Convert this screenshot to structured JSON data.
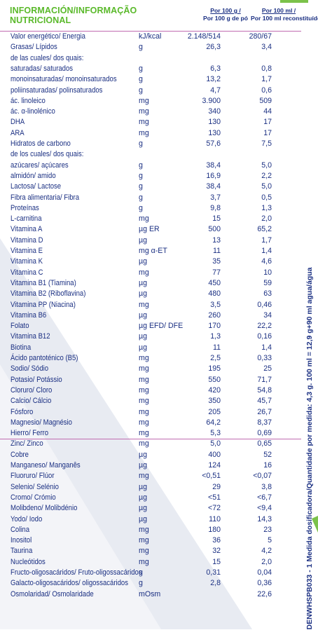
{
  "header": {
    "title_line1": "INFORMACIÓN/INFORMAÇÃO",
    "title_line2": "NUTRICIONAL",
    "col1_line1": "Por 100 g /",
    "col1_line2": "Por 100 g de pó",
    "col2_line1": "Por 100 ml /",
    "col2_line2": "Por 100 ml reconstituído"
  },
  "rows": [
    {
      "name": "Valor energético/ Energia",
      "unit": "kJ/kcal",
      "v1": "2.148/514",
      "v2": "280/67"
    },
    {
      "name": "Grasas/ Lípidos",
      "unit": "g",
      "v1": "26,3",
      "v2": "3,4"
    },
    {
      "name": "de las cuales/ dos quais:",
      "unit": "",
      "v1": "",
      "v2": ""
    },
    {
      "name": "  saturadas/ saturados",
      "unit": "g",
      "v1": "6,3",
      "v2": "0,8"
    },
    {
      "name": "  monoinsaturadas/ monoinsaturados",
      "unit": "g",
      "v1": "13,2",
      "v2": "1,7"
    },
    {
      "name": "  poliinsaturadas/ polinsaturados",
      "unit": "g",
      "v1": "4,7",
      "v2": "0,6"
    },
    {
      "name": "  ác. linoleico",
      "unit": "mg",
      "v1": "3.900",
      "v2": "509"
    },
    {
      "name": "  ác. α-linolénico",
      "unit": "mg",
      "v1": "340",
      "v2": "44"
    },
    {
      "name": "  DHA",
      "unit": "mg",
      "v1": "130",
      "v2": "17"
    },
    {
      "name": "  ARA",
      "unit": "mg",
      "v1": "130",
      "v2": "17"
    },
    {
      "name": "Hidratos de carbono",
      "unit": "g",
      "v1": "57,6",
      "v2": "7,5"
    },
    {
      "name": "de los cuales/ dos quais:",
      "unit": "",
      "v1": "",
      "v2": ""
    },
    {
      "name": "  azúcares/ açúcares",
      "unit": "g",
      "v1": "38,4",
      "v2": "5,0"
    },
    {
      "name": "  almidón/ amido",
      "unit": "g",
      "v1": "16,9",
      "v2": "2,2"
    },
    {
      "name": "Lactosa/ Lactose",
      "unit": "g",
      "v1": "38,4",
      "v2": "5,0"
    },
    {
      "name": "Fibra alimentaria/ Fibra",
      "unit": "g",
      "v1": "3,7",
      "v2": "0,5"
    },
    {
      "name": "Proteínas",
      "unit": "g",
      "v1": "9,8",
      "v2": "1,3"
    },
    {
      "name": "L-carnitina",
      "unit": "mg",
      "v1": "15",
      "v2": "2,0"
    },
    {
      "name": "Vitamina A",
      "unit": "µg ER",
      "v1": "500",
      "v2": "65,2"
    },
    {
      "name": "Vitamina D",
      "unit": "µg",
      "v1": "13",
      "v2": "1,7"
    },
    {
      "name": "Vitamina E",
      "unit": "mg α-ET",
      "v1": "11",
      "v2": "1,4"
    },
    {
      "name": "Vitamina K",
      "unit": "µg",
      "v1": "35",
      "v2": "4,6"
    },
    {
      "name": "Vitamina C",
      "unit": "mg",
      "v1": "77",
      "v2": "10"
    },
    {
      "name": "Vitamina B1 (Tiamina)",
      "unit": "µg",
      "v1": "450",
      "v2": "59"
    },
    {
      "name": "Vitamina B2 (Riboflavina)",
      "unit": "µg",
      "v1": "480",
      "v2": "63"
    },
    {
      "name": "Vitamina PP (Niacina)",
      "unit": "mg",
      "v1": "3,5",
      "v2": "0,46"
    },
    {
      "name": "Vitamina B6",
      "unit": "µg",
      "v1": "260",
      "v2": "34"
    },
    {
      "name": "Folato",
      "unit": "µg EFD/ DFE",
      "v1": "170",
      "v2": "22,2"
    },
    {
      "name": "Vitamina B12",
      "unit": "µg",
      "v1": "1,3",
      "v2": "0,16"
    },
    {
      "name": "Biotina",
      "unit": "µg",
      "v1": "11",
      "v2": "1,4"
    },
    {
      "name": "Ácido pantoténico (B5)",
      "unit": "mg",
      "v1": "2,5",
      "v2": "0,33"
    },
    {
      "name": "Sodio/ Sódio",
      "unit": "mg",
      "v1": "195",
      "v2": "25"
    },
    {
      "name": "Potasio/ Potássio",
      "unit": "mg",
      "v1": "550",
      "v2": "71,7"
    },
    {
      "name": "Cloruro/ Cloro",
      "unit": "mg",
      "v1": "420",
      "v2": "54,8"
    },
    {
      "name": "Calcio/ Cálcio",
      "unit": "mg",
      "v1": "350",
      "v2": "45,7"
    },
    {
      "name": "Fósforo",
      "unit": "mg",
      "v1": "205",
      "v2": "26,7"
    },
    {
      "name": "Magnesio/ Magnésio",
      "unit": "mg",
      "v1": "64,2",
      "v2": "8,37"
    },
    {
      "name": "Hierro/ Ferro",
      "unit": "mg",
      "v1": "5,3",
      "v2": "0,69"
    },
    {
      "name": "Zinc/ Zinco",
      "unit": "mg",
      "v1": "5,0",
      "v2": "0,65"
    },
    {
      "name": "Cobre",
      "unit": "µg",
      "v1": "400",
      "v2": "52"
    },
    {
      "name": "Manganeso/ Manganês",
      "unit": "µg",
      "v1": "124",
      "v2": "16"
    },
    {
      "name": "Fluoruro/ Flúor",
      "unit": "mg",
      "v1": "<0,51",
      "v2": "<0,07"
    },
    {
      "name": "Selenio/ Selénio",
      "unit": "µg",
      "v1": "29",
      "v2": "3,8"
    },
    {
      "name": "Cromo/ Crómio",
      "unit": "µg",
      "v1": "<51",
      "v2": "<6,7"
    },
    {
      "name": "Molibdeno/ Molibdénio",
      "unit": "µg",
      "v1": "<72",
      "v2": "<9,4"
    },
    {
      "name": "Yodo/ Iodo",
      "unit": "µg",
      "v1": "110",
      "v2": "14,3"
    },
    {
      "name": "Colina",
      "unit": "mg",
      "v1": "180",
      "v2": "23"
    },
    {
      "name": "Inositol",
      "unit": "mg",
      "v1": "36",
      "v2": "5"
    },
    {
      "name": "Taurina",
      "unit": "mg",
      "v1": "32",
      "v2": "4,2"
    },
    {
      "name": "Nucleótidos",
      "unit": "mg",
      "v1": "15",
      "v2": "2,0"
    },
    {
      "name": "Fructo-oligosacáridos/ Fruto-oligossacáridos",
      "unit": "g",
      "v1": "0,31",
      "v2": "0,04"
    },
    {
      "name": "Galacto-oligosacáridos/ oligossacáridos",
      "unit": "g",
      "v1": "2,8",
      "v2": "0,36"
    },
    {
      "name": "Osmolaridad/ Osmolaridade",
      "unit": "mOsm",
      "v1": "",
      "v2": "22,6"
    }
  ],
  "side_text": "DENWHSPB033 - 1   Medida dosificadora/Quantidade por medida: 4,3 g. 100 ml = 12,9 g+90 ml agua/água",
  "colors": {
    "text": "#1a2f82",
    "title": "#5ab92a",
    "rule": "#c06bb0",
    "stripe": "#e9ecf3"
  }
}
